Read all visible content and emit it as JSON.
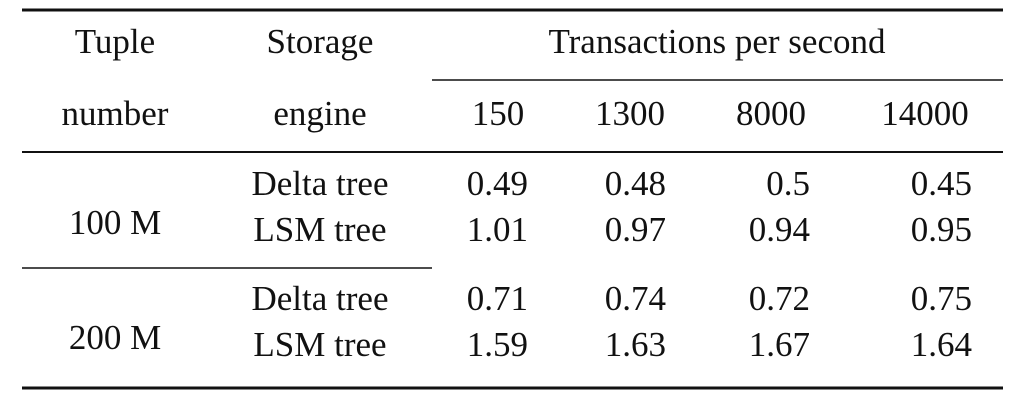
{
  "table": {
    "header": {
      "col1": [
        "Tuple",
        "number"
      ],
      "col2": [
        "Storage",
        "engine"
      ],
      "group": "Transactions per second",
      "rates": [
        150,
        1300,
        8000,
        14000
      ]
    },
    "groups": [
      {
        "tuples": "100 M",
        "rows": [
          {
            "engine": "Delta tree",
            "values": [
              0.49,
              0.48,
              0.5,
              0.45
            ]
          },
          {
            "engine": "LSM tree",
            "values": [
              1.01,
              0.97,
              0.94,
              0.95
            ]
          }
        ]
      },
      {
        "tuples": "200 M",
        "rows": [
          {
            "engine": "Delta tree",
            "values": [
              0.71,
              0.74,
              0.72,
              0.75
            ]
          },
          {
            "engine": "LSM tree",
            "values": [
              1.59,
              1.63,
              1.67,
              1.64
            ]
          }
        ]
      }
    ]
  }
}
